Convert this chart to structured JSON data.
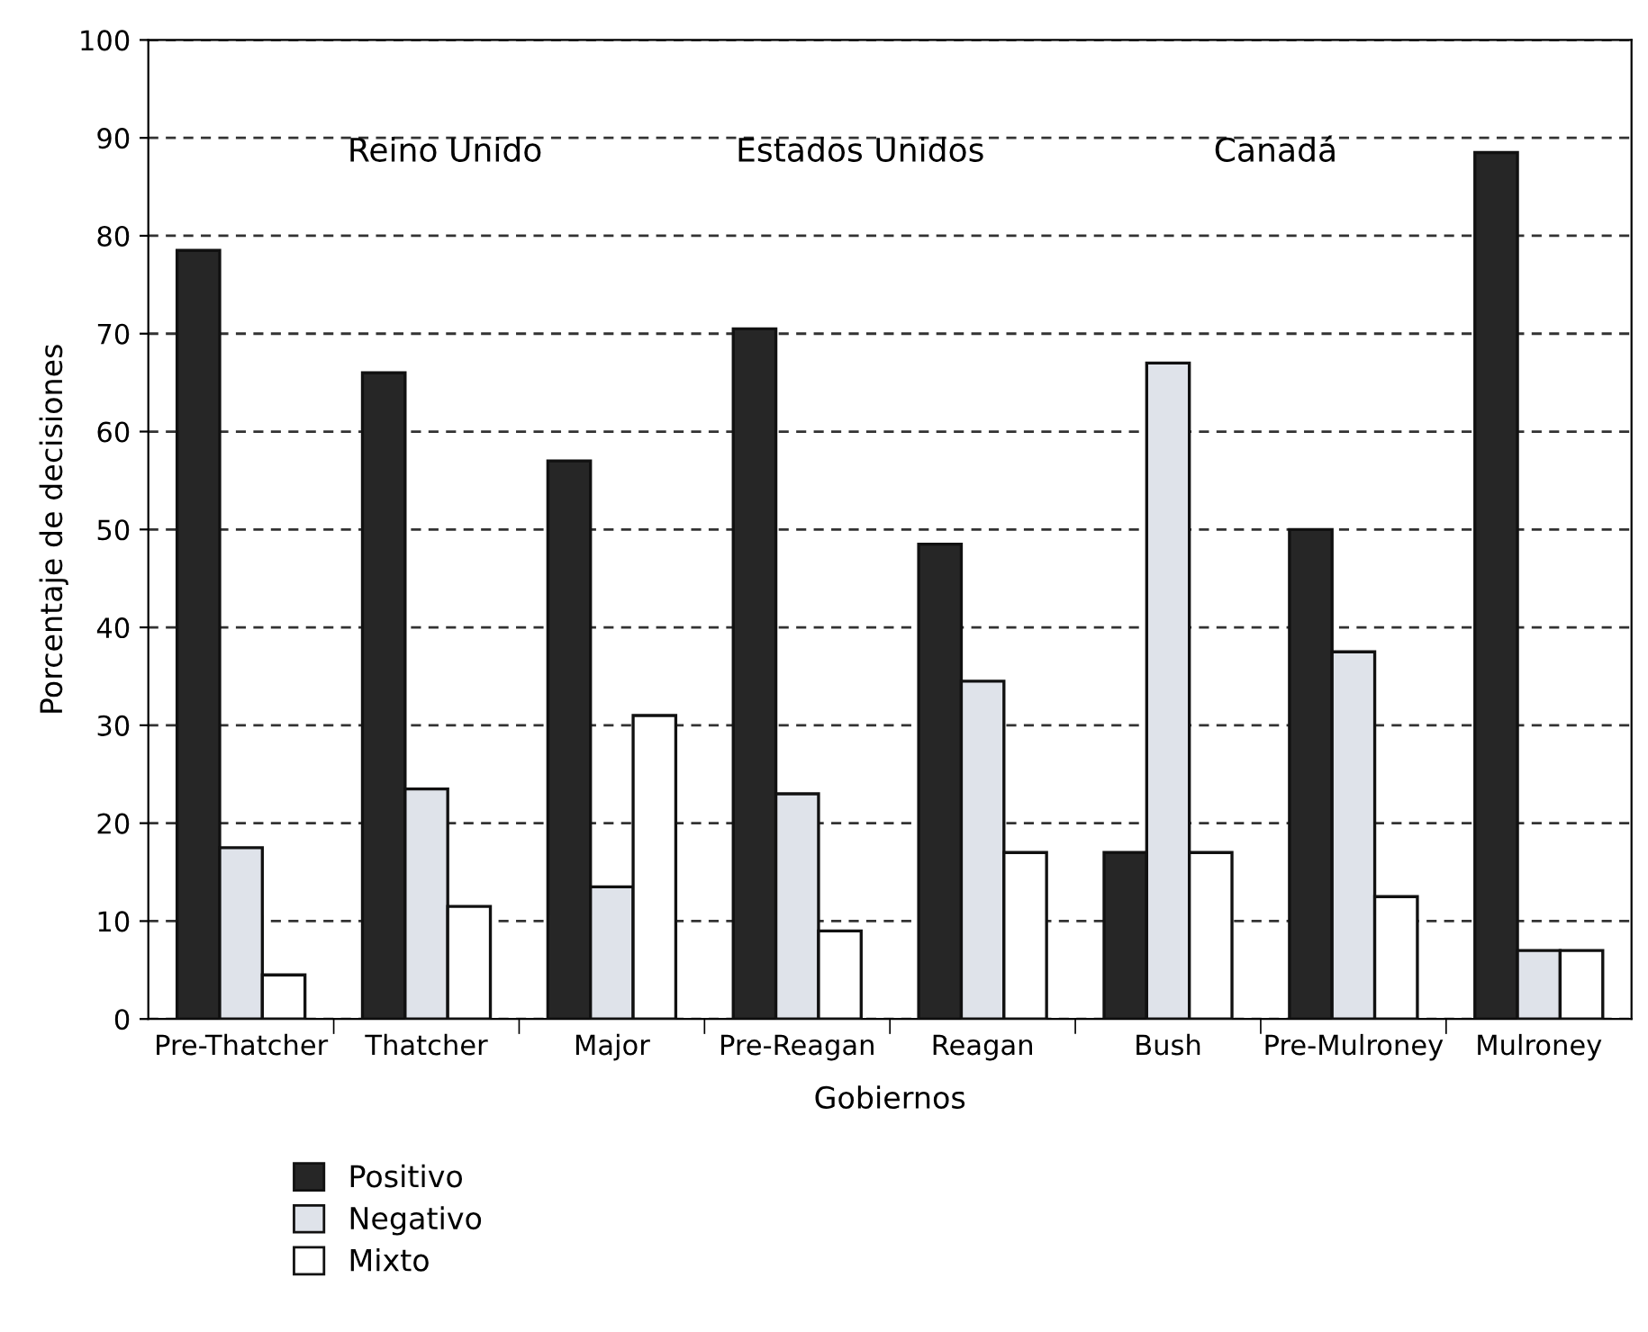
{
  "chart_data": {
    "type": "bar",
    "xlabel": "Gobiernos",
    "ylabel": "Porcentaje de decisiones",
    "categories": [
      "Pre-Thatcher",
      "Thatcher",
      "Major",
      "Pre-Reagan",
      "Reagan",
      "Bush",
      "Pre-Mulroney",
      "Mulroney"
    ],
    "series": [
      {
        "name": "Positivo",
        "color": "#262626",
        "values": [
          78.5,
          66,
          57,
          70.5,
          48.5,
          17,
          50,
          88.5
        ]
      },
      {
        "name": "Negativo",
        "color": "#dfe3ea",
        "values": [
          17.5,
          23.5,
          13.5,
          23,
          34.5,
          67,
          37.5,
          7
        ]
      },
      {
        "name": "Mixto",
        "color": "#ffffff",
        "values": [
          4.5,
          11.5,
          31,
          9,
          17,
          17,
          12.5,
          7
        ]
      }
    ],
    "ylim": [
      0,
      100
    ],
    "yticks": [
      0,
      10,
      20,
      30,
      40,
      50,
      60,
      70,
      80,
      90,
      100
    ],
    "grid": "y",
    "legend": "bottom",
    "annotations": [
      "Reino Unido",
      "Estados Unidos",
      "Canadá"
    ]
  }
}
